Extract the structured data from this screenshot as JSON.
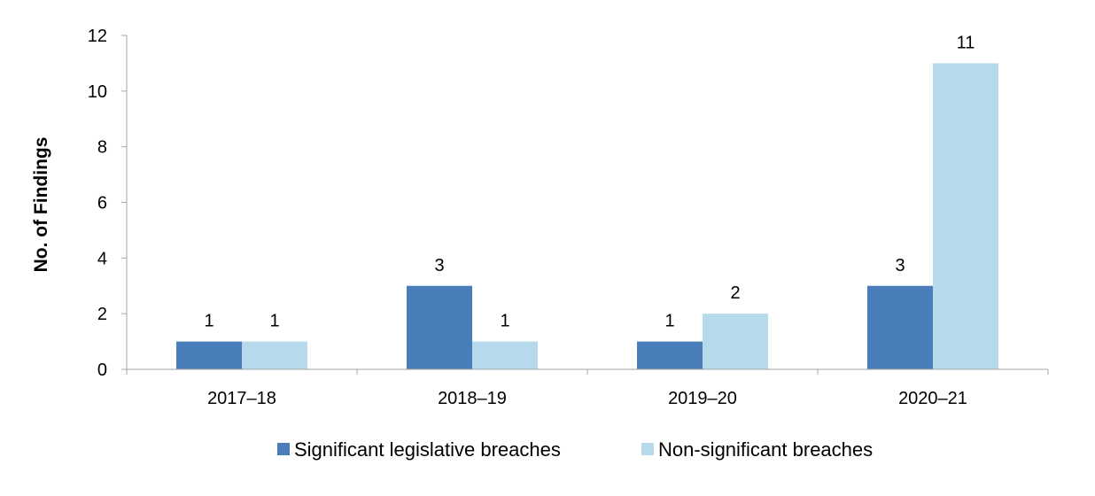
{
  "chart_data": {
    "type": "bar",
    "categories": [
      "2017–18",
      "2018–19",
      "2019–20",
      "2020–21"
    ],
    "series": [
      {
        "name": "Significant legislative breaches",
        "values": [
          1,
          3,
          1,
          3
        ],
        "color": "#4a7ebb"
      },
      {
        "name": "Non-significant breaches",
        "values": [
          1,
          1,
          2,
          11
        ],
        "color": "#b6d9ec"
      }
    ],
    "title": "",
    "xlabel": "",
    "ylabel": "No. of Findings",
    "ylim": [
      0,
      12
    ],
    "yticks": [
      0,
      2,
      4,
      6,
      8,
      10,
      12
    ],
    "grid": false,
    "legend_position": "bottom",
    "axis_color": "#a6a6a6"
  }
}
